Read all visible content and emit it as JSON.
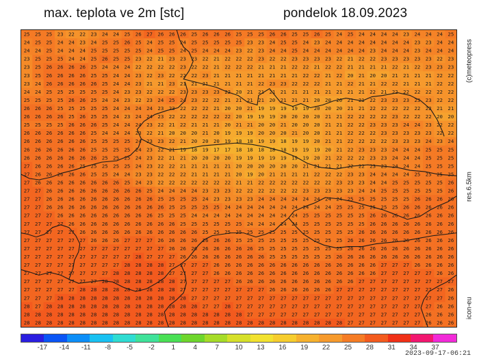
{
  "title_left": "max. teplota ve 2m [stc]",
  "title_right": "pondelok 18.09.2023",
  "side_copyright": "(c)meteopress",
  "side_resolution": "res.6.5km",
  "side_model": "icon-eu",
  "timestamp": "2023-09-17-06:21",
  "colorbar": {
    "ticks": [
      "-17",
      "-14",
      "-11",
      "-8",
      "-5",
      "-2",
      "1",
      "4",
      "7",
      "10",
      "13",
      "16",
      "19",
      "22",
      "25",
      "28",
      "31",
      "34",
      "37"
    ],
    "colors": [
      "#2a1ee0",
      "#0a55f5",
      "#0c8ef8",
      "#19c1f2",
      "#2fdcd2",
      "#3fe29a",
      "#4ae055",
      "#6ed62d",
      "#a6dc28",
      "#d6e02a",
      "#f2e230",
      "#f6cd2e",
      "#f6b12e",
      "#f69a2d",
      "#f57c25",
      "#f35b1e",
      "#f03017",
      "#f21770",
      "#f22ad8"
    ]
  },
  "field": {
    "grid_rows": [
      "25 25 25 23 22 22 23 24 24 25 26 27 26 26 26 25 26 26 26 25 25 25 26 26 25 25 26 25 24 25 24 24 24 24 23 24 24 24 25",
      "24 25 25 24 24 23 24 25 25 26 25 24 25 25 24 25 25 25 25 25 23 23 24 25 25 24 23 24 24 24 24 24 24 24 24 23 23 24 24",
      "24 24 25 24 24 24 25 25 25 25 25 24 25 25 24 25 24 24 24 23 22 23 24 24 25 24 24 24 24 24 24 23 24 24 24 23 24 24 24",
      "23 25 25 25 24 24 25 26 25 25 23 22 21 23 23 23 22 21 22 22 22 23 22 22 23 23 23 23 22 21 22 22 23 23 23 23 23 22 23",
      "23 25 26 26 26 26 25 24 24 24 22 22 22 22 23 22 22 21 22 22 22 21 21 21 22 22 21 22 22 21 21 21 21 22 21 22 23 23 23",
      "23 25 26 26 26 26 25 25 24 24 23 22 23 22 22 22 23 21 21 21 21 21 21 21 21 22 22 21 22 20 21 20 20 21 21 21 21 22 22",
      "23 24 26 26 26 26 26 25 24 24 23 21 21 23 21 21 21 21 21 21 21 22 23 23 22 22 22 21 21 22 21 21 22 22 21 21 21 22 22",
      "24 24 25 25 25 25 25 25 24 23 23 22 22 22 23 23 23 23 22 20 21 21 21 21 21 21 21 21 21 21 21 22 21 22 22 22 22 22 22",
      "25 25 25 25 26 26 25 24 24 23 22 23 24 25 24 23 22 22 21 21 21 21 20 21 21 21 20 20 20 21 21 22 23 23 23 23 23 22 22",
      "26 26 26 25 25 25 25 25 24 24 24 24 23 23 22 22 22 21 20 20 21 19 19 19 19 19 20 20 20 21 21 22 22 22 22 22 22 21 21",
      "26 26 26 26 25 26 25 25 24 23 24 24 23 22 22 22 22 22 22 20 19 19 19 20 20 20 20 21 21 22 22 22 22 23 22 22 22 20 20",
      "25 25 25 25 26 26 26 25 24 24 24 23 22 21 22 21 21 21 20 21 21 20 20 21 20 20 20 21 21 22 22 23 23 23 24 24 23 22 22",
      "26 26 26 26 26 26 25 24 24 24 23 22 21 20 20 20 21 20 19 19 19 20 20 20 21 20 20 21 21 22 22 22 23 23 23 23 23 22 22",
      "26 26 26 26 26 26 25 25 25 25 24 23 23 22 21 20 20 20 19 18 18 19 19 18 19 19 20 21 21 22 22 22 22 23 23 23 24 23 24",
      "26 26 26 26 26 26 25 25 25 25 24 23 22 21 19 18 19 17 17 18 18 18 18 18 19 19 19 20 21 22 23 23 23 24 24 24 25 25 25",
      "26 26 26 26 26 26 26 25 25 25 24 23 22 21 21 20 20 20 20 19 19 19 19 19 19 19 20 21 22 22 22 23 23 24 24 24 25 25 25",
      "27 26 26 26 26 25 25 25 25 25 24 23 22 22 21 21 21 21 21 20 20 20 20 20 20 21 21 21 21 22 22 23 23 24 24 24 25 25 25",
      "27 26 26 26 26 26 25 25 24 24 23 23 22 22 22 21 21 21 21 20 19 20 21 21 21 21 22 22 22 23 23 24 24 24 24 25 25 25 25",
      "27 26 26 26 26 26 26 26 26 25 24 23 22 22 22 22 22 22 22 21 21 22 22 22 22 22 22 22 23 23 23 24 24 25 25 25 25 25 26",
      "27 27 26 26 26 26 26 26 26 26 26 25 24 24 24 24 23 23 23 22 22 22 22 22 22 23 23 23 23 23 24 24 25 25 25 25 25 25 26",
      "27 27 26 26 26 26 26 26 26 26 26 26 25 25 25 25 24 23 23 23 23 24 24 24 24 24 24 24 24 25 25 25 25 25 25 26 26 26 26",
      "27 27 26 26 26 26 26 26 26 26 26 26 26 25 25 25 25 25 24 24 24 24 24 24 24 24 24 24 25 25 25 25 25 25 26 26 26 26 26",
      "27 27 27 26 26 26 26 26 26 26 26 26 25 25 25 24 24 24 24 24 24 24 24 24 24 25 25 25 25 25 25 26 26 26 26 26 26 26 26",
      "27 27 27 27 26 26 26 26 26 26 26 26 26 26 25 25 25 25 25 25 24 24 24 24 24 25 25 25 25 25 25 26 26 26 26 26 26 26 26",
      "27 27 27 27 27 26 26 26 26 26 26 26 26 26 26 26 25 25 25 25 25 25 25 25 25 25 25 25 25 25 26 26 26 26 26 26 26 26 26",
      "27 27 27 27 27 27 26 26 26 27 27 27 26 26 26 26 26 26 26 25 25 25 25 25 25 25 25 25 25 26 26 26 26 26 26 26 26 26 26",
      "27 27 27 27 27 27 27 27 27 27 27 27 27 26 26 26 26 26 26 26 26 25 25 25 25 25 25 25 25 26 26 26 26 26 26 26 26 26 26",
      "27 27 27 27 27 27 27 27 27 27 28 27 27 27 26 26 26 26 26 26 26 26 25 25 25 25 25 25 26 26 26 26 26 26 26 26 26 26 26",
      "27 27 27 27 27 27 27 27 27 28 28 28 28 27 27 27 27 26 26 26 26 26 26 26 26 26 26 26 26 26 26 26 27 27 27 26 26 26 26",
      "27 27 27 27 27 27 27 27 28 28 28 28 28 27 27 27 27 26 26 26 26 26 26 26 26 26 26 26 26 26 26 26 27 27 27 27 27 26 26",
      "27 27 27 27 27 27 27 28 28 28 28 28 28 28 27 27 27 27 27 26 26 26 26 26 26 26 26 26 26 26 27 27 27 27 27 27 27 27 27",
      "27 27 27 27 27 28 28 28 28 28 28 28 28 28 27 27 27 27 27 27 27 27 26 26 26 26 26 26 27 27 27 27 27 27 27 27 27 27 26",
      "27 27 27 28 28 28 28 28 28 28 28 28 28 28 28 27 27 27 27 27 27 27 27 27 27 27 27 27 27 27 27 27 27 27 27 27 27 27 26",
      "28 27 28 28 28 28 28 28 28 28 28 28 28 28 28 28 27 27 28 27 27 27 27 27 27 27 27 27 27 27 27 27 27 27 27 27 27 26 26",
      "28 28 28 28 28 28 28 28 28 28 28 28 28 28 28 28 28 28 28 28 27 27 27 27 27 27 27 27 27 27 27 27 27 27 27 27 26 26 26",
      "28 28 28 28 28 28 28 28 28 28 28 28 28 28 28 28 28 28 28 28 28 28 28 28 28 28 28 28 28 27 27 27 27 27 27 27 26 26 26"
    ]
  }
}
